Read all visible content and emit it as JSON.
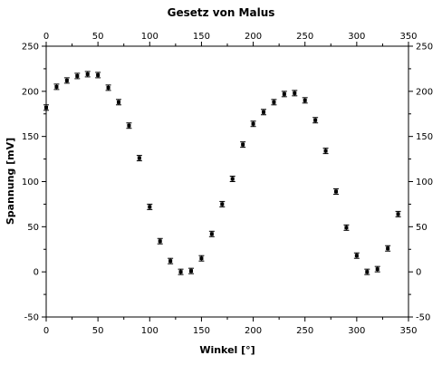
{
  "chart_data": {
    "type": "scatter",
    "title": "Gesetz von Malus",
    "xlabel": "Winkel [°]",
    "ylabel": "Spannung [mV]",
    "xlim": [
      0,
      350
    ],
    "ylim": [
      -50,
      250
    ],
    "xticks": [
      0,
      50,
      100,
      150,
      200,
      250,
      300,
      350
    ],
    "yticks": [
      -50,
      0,
      50,
      100,
      150,
      200,
      250
    ],
    "grid": false,
    "error_bars": true,
    "marker_color": "#000000",
    "series": [
      {
        "x": [
          0,
          10,
          20,
          30,
          40,
          50,
          60,
          70,
          80,
          90,
          100,
          110,
          120,
          130,
          140,
          150,
          160,
          170,
          180,
          190,
          200,
          210,
          220,
          230,
          240,
          250,
          260,
          270,
          280,
          290,
          300,
          310,
          320,
          330,
          340
        ],
        "y": [
          182,
          205,
          212,
          217,
          219,
          218,
          204,
          188,
          162,
          126,
          72,
          34,
          12,
          0,
          1,
          15,
          42,
          75,
          103,
          141,
          164,
          177,
          188,
          197,
          198,
          190,
          168,
          134,
          89,
          49,
          18,
          0,
          3,
          26,
          64
        ],
        "err": [
          3,
          3,
          3,
          3,
          3,
          3,
          3,
          3,
          3,
          3,
          3,
          3,
          3,
          3,
          3,
          3,
          3,
          3,
          3,
          3,
          3,
          3,
          3,
          3,
          3,
          3,
          3,
          3,
          3,
          3,
          3,
          3,
          3,
          3,
          3
        ]
      }
    ]
  }
}
